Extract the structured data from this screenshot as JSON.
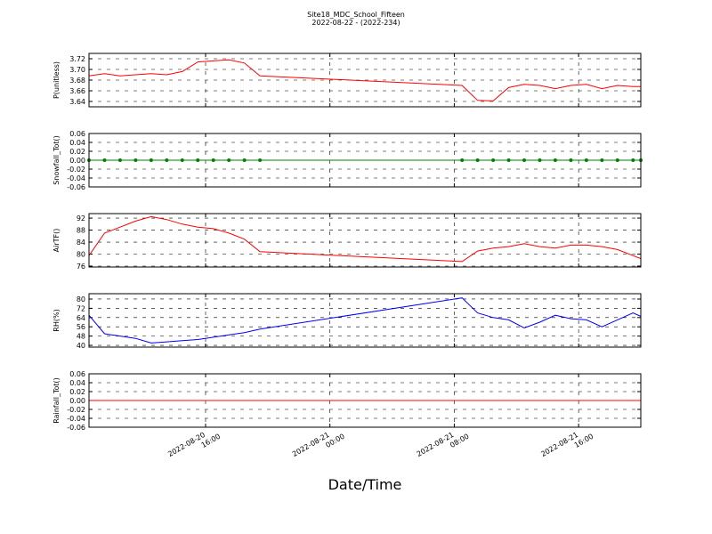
{
  "title": "Site18_MDC_School_Fifteen",
  "subtitle": "2022-08-22 - (2022-234)",
  "x_label": "Date/Time",
  "chart_data": [
    {
      "type": "line",
      "ylabel": "P(unitless)",
      "color": "#ff0000",
      "grid": true,
      "x": [
        "2022-08-20 08:30",
        "2022-08-20 09:30",
        "2022-08-20 10:30",
        "2022-08-20 11:30",
        "2022-08-20 12:30",
        "2022-08-20 13:30",
        "2022-08-20 14:30",
        "2022-08-20 15:30",
        "2022-08-20 16:30",
        "2022-08-20 17:30",
        "2022-08-20 18:30",
        "2022-08-20 19:30",
        "2022-08-21 08:30",
        "2022-08-21 09:30",
        "2022-08-21 10:30",
        "2022-08-21 11:30",
        "2022-08-21 12:30",
        "2022-08-21 13:30",
        "2022-08-21 14:30",
        "2022-08-21 15:30",
        "2022-08-21 16:30",
        "2022-08-21 17:30",
        "2022-08-21 18:30",
        "2022-08-21 19:30",
        "2022-08-21 20:00"
      ],
      "values": [
        3.688,
        3.692,
        3.688,
        3.69,
        3.692,
        3.69,
        3.696,
        3.714,
        3.716,
        3.718,
        3.712,
        3.688,
        3.67,
        3.642,
        3.641,
        3.666,
        3.672,
        3.67,
        3.664,
        3.67,
        3.672,
        3.664,
        3.67,
        3.668,
        3.668
      ],
      "xlim": [
        "2022-08-20 08:30",
        "2022-08-21 20:00"
      ],
      "xticks": [
        "2022-08-20 16:00",
        "2022-08-21 00:00",
        "2022-08-21 08:00",
        "2022-08-21 16:00"
      ],
      "ylim": [
        3.63,
        3.73
      ],
      "yticks": [
        3.64,
        3.66,
        3.68,
        {
          "value": 3.7,
          "label": "3.70"
        },
        3.72
      ]
    },
    {
      "type": "line",
      "ylabel": "Snowfall_Tot()",
      "color": "#008000",
      "marker": "o",
      "grid": true,
      "x": [
        "2022-08-20 08:30",
        "2022-08-20 09:30",
        "2022-08-20 10:30",
        "2022-08-20 11:30",
        "2022-08-20 12:30",
        "2022-08-20 13:30",
        "2022-08-20 14:30",
        "2022-08-20 15:30",
        "2022-08-20 16:30",
        "2022-08-20 17:30",
        "2022-08-20 18:30",
        "2022-08-20 19:30",
        "2022-08-21 08:30",
        "2022-08-21 09:30",
        "2022-08-21 10:30",
        "2022-08-21 11:30",
        "2022-08-21 12:30",
        "2022-08-21 13:30",
        "2022-08-21 14:30",
        "2022-08-21 15:30",
        "2022-08-21 16:30",
        "2022-08-21 17:30",
        "2022-08-21 18:30",
        "2022-08-21 19:30",
        "2022-08-21 20:00"
      ],
      "values": [
        0,
        0,
        0,
        0,
        0,
        0,
        0,
        0,
        0,
        0,
        0,
        0,
        0,
        0,
        0,
        0,
        0,
        0,
        0,
        0,
        0,
        0,
        0,
        0,
        0
      ],
      "xlim": [
        "2022-08-20 08:30",
        "2022-08-21 20:00"
      ],
      "xticks": [
        "2022-08-20 16:00",
        "2022-08-21 00:00",
        "2022-08-21 08:00",
        "2022-08-21 16:00"
      ],
      "ylim": [
        -0.06,
        0.06
      ],
      "yticks": [
        -0.06,
        -0.04,
        -0.02,
        {
          "value": 0,
          "label": "0.00"
        },
        0.02,
        0.04,
        0.06
      ]
    },
    {
      "type": "line",
      "ylabel": "AirTF()",
      "color": "#ff0000",
      "grid": true,
      "x": [
        "2022-08-20 08:30",
        "2022-08-20 09:30",
        "2022-08-20 10:30",
        "2022-08-20 11:30",
        "2022-08-20 12:30",
        "2022-08-20 13:30",
        "2022-08-20 14:30",
        "2022-08-20 15:30",
        "2022-08-20 16:30",
        "2022-08-20 17:30",
        "2022-08-20 18:30",
        "2022-08-20 19:30",
        "2022-08-21 08:30",
        "2022-08-21 09:30",
        "2022-08-21 10:30",
        "2022-08-21 11:30",
        "2022-08-21 12:30",
        "2022-08-21 13:30",
        "2022-08-21 14:30",
        "2022-08-21 15:30",
        "2022-08-21 16:30",
        "2022-08-21 17:30",
        "2022-08-21 18:30",
        "2022-08-21 19:30",
        "2022-08-21 20:00"
      ],
      "values": [
        79.5,
        87,
        89,
        91,
        92.5,
        91.5,
        90,
        89,
        88.5,
        87,
        85,
        80.8,
        77.5,
        81,
        82,
        82.5,
        83.5,
        82.5,
        82,
        83,
        83,
        82.5,
        81.5,
        79.5,
        78.5
      ],
      "xlim": [
        "2022-08-20 08:30",
        "2022-08-21 20:00"
      ],
      "xticks": [
        "2022-08-20 16:00",
        "2022-08-21 00:00",
        "2022-08-21 08:00",
        "2022-08-21 16:00"
      ],
      "ylim": [
        75.7,
        93.5
      ],
      "yticks": [
        76,
        80,
        84,
        88,
        92
      ]
    },
    {
      "type": "line",
      "ylabel": "RH(%)",
      "color": "#0000ff",
      "grid": true,
      "x": [
        "2022-08-20 08:30",
        "2022-08-20 09:30",
        "2022-08-20 10:30",
        "2022-08-20 11:30",
        "2022-08-20 12:30",
        "2022-08-20 13:30",
        "2022-08-20 14:30",
        "2022-08-20 15:30",
        "2022-08-20 16:30",
        "2022-08-20 17:30",
        "2022-08-20 18:30",
        "2022-08-20 19:30",
        "2022-08-21 08:30",
        "2022-08-21 09:30",
        "2022-08-21 10:30",
        "2022-08-21 11:30",
        "2022-08-21 12:30",
        "2022-08-21 13:30",
        "2022-08-21 14:30",
        "2022-08-21 15:30",
        "2022-08-21 16:30",
        "2022-08-21 17:30",
        "2022-08-21 18:30",
        "2022-08-21 19:30",
        "2022-08-21 20:00"
      ],
      "values": [
        66,
        50,
        48,
        46,
        42,
        43,
        44,
        45,
        47,
        49,
        51,
        54,
        81,
        68,
        64,
        62,
        55,
        60,
        66,
        63,
        62,
        56,
        62,
        68,
        65
      ],
      "xlim": [
        "2022-08-20 08:30",
        "2022-08-21 20:00"
      ],
      "xticks": [
        "2022-08-20 16:00",
        "2022-08-21 00:00",
        "2022-08-21 08:00",
        "2022-08-21 16:00"
      ],
      "ylim": [
        38.5,
        84.6
      ],
      "yticks": [
        40,
        48,
        56,
        64,
        72,
        80
      ]
    },
    {
      "type": "line",
      "ylabel": "Rainfall_Tot()",
      "color": "#ff0000",
      "grid": true,
      "show_xtick_labels": true,
      "x": [
        "2022-08-20 08:30",
        "2022-08-20 09:30",
        "2022-08-20 10:30",
        "2022-08-20 11:30",
        "2022-08-20 12:30",
        "2022-08-20 13:30",
        "2022-08-20 14:30",
        "2022-08-20 15:30",
        "2022-08-20 16:30",
        "2022-08-20 17:30",
        "2022-08-20 18:30",
        "2022-08-20 19:30",
        "2022-08-21 08:30",
        "2022-08-21 09:30",
        "2022-08-21 10:30",
        "2022-08-21 11:30",
        "2022-08-21 12:30",
        "2022-08-21 13:30",
        "2022-08-21 14:30",
        "2022-08-21 15:30",
        "2022-08-21 16:30",
        "2022-08-21 17:30",
        "2022-08-21 18:30",
        "2022-08-21 19:30",
        "2022-08-21 20:00"
      ],
      "values": [
        0,
        0,
        0,
        0,
        0,
        0,
        0,
        0,
        0,
        0,
        0,
        0,
        0,
        0,
        0,
        0,
        0,
        0,
        0,
        0,
        0,
        0,
        0,
        0,
        0
      ],
      "xlim": [
        "2022-08-20 08:30",
        "2022-08-21 20:00"
      ],
      "xticks": [
        "2022-08-20 16:00",
        "2022-08-21 00:00",
        "2022-08-21 08:00",
        "2022-08-21 16:00"
      ],
      "ylim": [
        -0.06,
        0.06
      ],
      "yticks": [
        -0.06,
        -0.04,
        -0.02,
        {
          "value": 0,
          "label": "0.00"
        },
        0.02,
        0.04,
        0.06
      ]
    }
  ]
}
